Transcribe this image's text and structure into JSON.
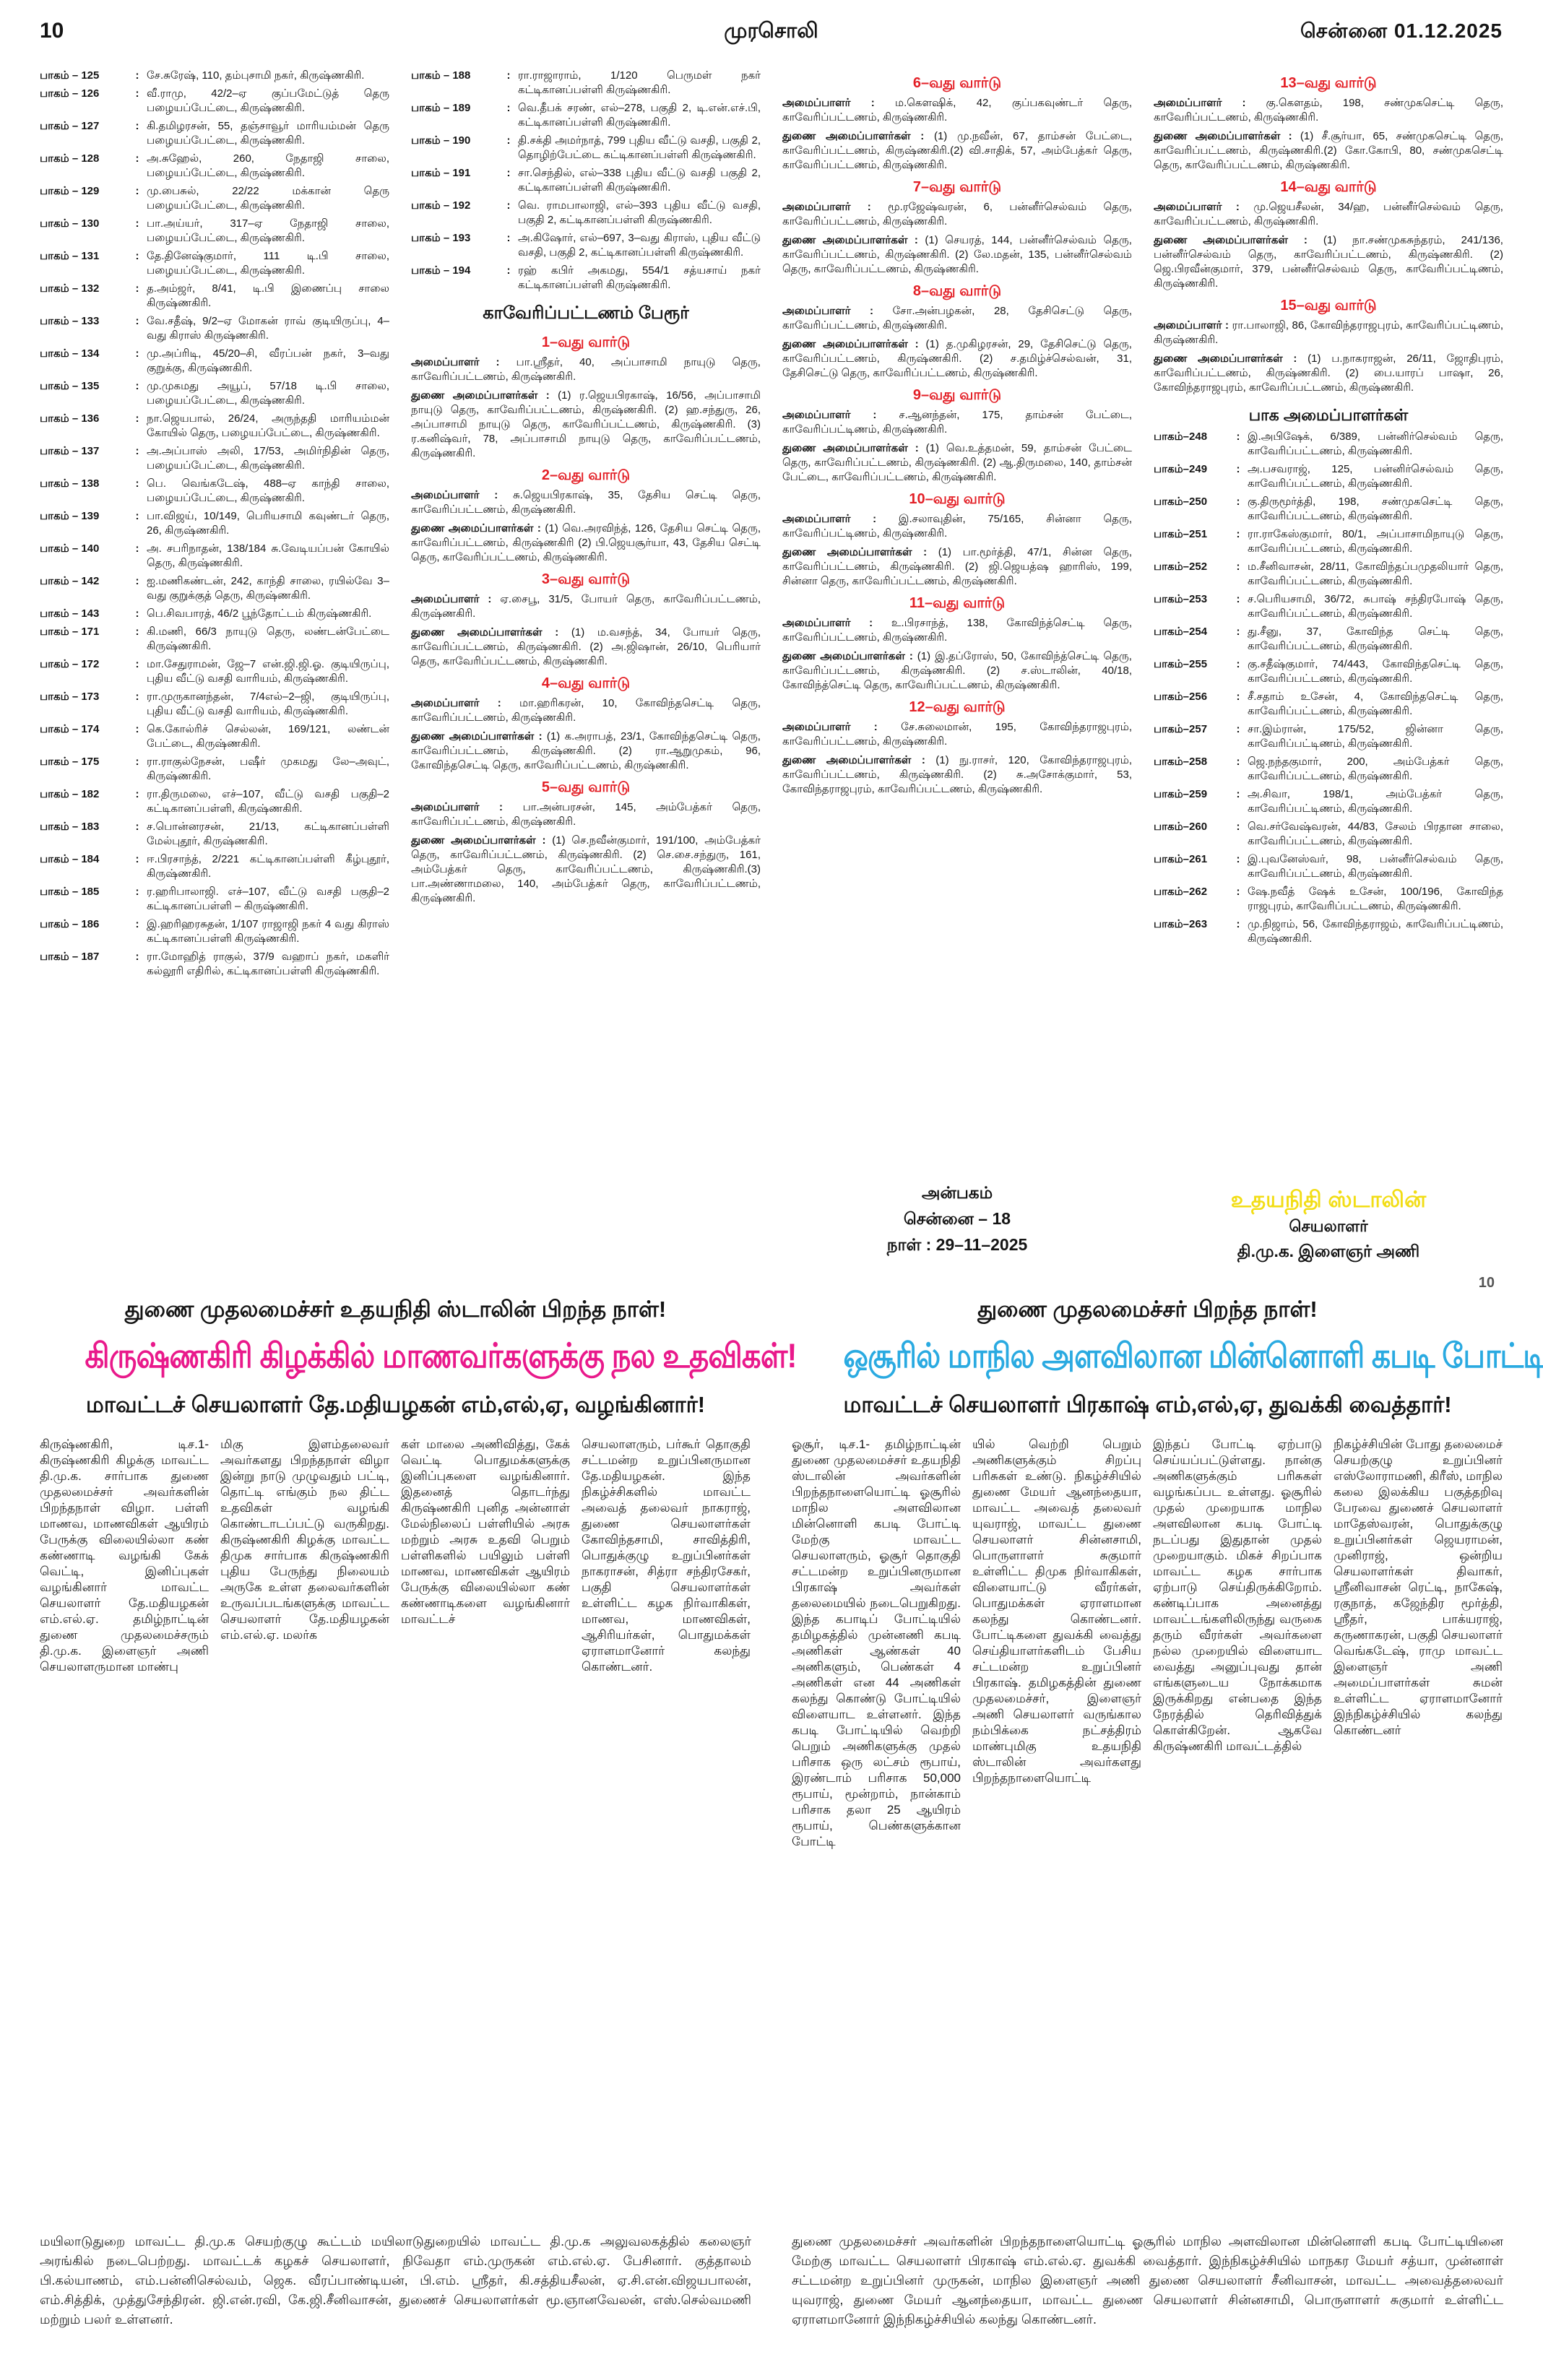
{
  "colors": {
    "ward_red": "#e31f26",
    "accent_pink": "#e9198b",
    "accent_blue": "#2aaae1",
    "accent_yellow": "#f2dd15"
  },
  "page": {
    "number": "10",
    "masthead": "முரசொலி",
    "city_date": "சென்னை  01.12.2025",
    "corner_number": "10"
  },
  "labels": {
    "organizer": "அமைப்பாளர்",
    "deputies": "துணை அமைப்பாளர்கள்",
    "sep": " : "
  },
  "listings": {
    "column1": {
      "entries": [
        {
          "num": "பாகம் – 125",
          "text": "சே.சுரேஷ், 110, தம்புசாமி நகர், கிருஷ்ணகிரி."
        },
        {
          "num": "பாகம் – 126",
          "text": "வீ.ராமு, 42/2–ஏ குப்பமேட்டுத் தெரு பழையப்பேட்டை, கிருஷ்ணகிரி."
        },
        {
          "num": "பாகம் – 127",
          "text": "கி.தமிழரசன், 55, தஞ்சாவூர் மாரியம்மன் தெரு பழையப்பேட்டை, கிருஷ்ணகிரி."
        },
        {
          "num": "பாகம் – 128",
          "text": "அ.சுஹேல், 260, நேதாஜி சாலை, பழையப்பேட்டை, கிருஷ்ணகிரி."
        },
        {
          "num": "பாகம் – 129",
          "text": "மு.பைசுல், 22/22 மக்கான் தெரு பழையப்பேட்டை, கிருஷ்ணகிரி."
        },
        {
          "num": "பாகம் – 130",
          "text": "பா.அய்யர், 317–ஏ நேதாஜி சாலை, பழையப்பேட்டை, கிருஷ்ணகிரி."
        },
        {
          "num": "பாகம் – 131",
          "text": "தே.தினேஷ்குமார், 111 டி.பி சாலை, பழையப்பேட்டை, கிருஷ்ணகிரி."
        },
        {
          "num": "பாகம் – 132",
          "text": "த.அம்ஜர், 8/41, டி.பி இணைப்பு சாலை கிருஷ்ணகிரி."
        },
        {
          "num": "பாகம் – 133",
          "text": "வே.சதீஷ், 9/2–ஏ மோகன் ராவ் குடியிருப்பு, 4–வது கிராஸ் கிருஷ்ணகிரி."
        },
        {
          "num": "பாகம் – 134",
          "text": "மு.அப்ரிடி, 45/20–சி, வீரப்பன் நகர், 3–வது குறுக்கு, கிருஷ்ணகிரி."
        },
        {
          "num": "பாகம் – 135",
          "text": "மு.முகமது அயூப், 57/18 டி.பி சாலை, பழையப்பேட்டை, கிருஷ்ணகிரி."
        },
        {
          "num": "பாகம் – 136",
          "text": "நா.ஜெயபால், 26/24, அருந்ததி மாரியம்மன் கோயில் தெரு, பழையப்பேட்டை, கிருஷ்ணகிரி."
        },
        {
          "num": "பாகம் – 137",
          "text": "அ.அப்பாஸ் அலி, 17/53, அமிர்நிதின் தெரு, பழையப்பேட்டை, கிருஷ்ணகிரி."
        },
        {
          "num": "பாகம் – 138",
          "text": "பெ. வெங்கடேஷ், 488–ஏ காந்தி சாலை, பழையப்பேட்டை, கிருஷ்ணகிரி."
        },
        {
          "num": "பாகம் – 139",
          "text": "பா.விஜய், 10/149, பெரியசாமி கவுண்டர் தெரு, 26, கிருஷ்ணகிரி."
        },
        {
          "num": "பாகம் – 140",
          "text": "அ. சபரிநாதன், 138/184 சு.வேடியப்பன் கோயில் தெரு, கிருஷ்ணகிரி."
        },
        {
          "num": "பாகம் – 142",
          "text": "ஐ.மணிகண்டன், 242, காந்தி சாலை, ரயில்வே 3–வது குறுக்குத் தெரு, கிருஷ்ணகிரி."
        },
        {
          "num": "பாகம் – 143",
          "text": "பெ.சிவபாரத், 46/2 பூந்தோட்டம் கிருஷ்ணகிரி."
        },
        {
          "num": "பாகம் – 171",
          "text": "கி.மணி, 66/3 நாயுடு தெரு, லண்டன்பேட்டை கிருஷ்ணகிரி."
        },
        {
          "num": "பாகம் – 172",
          "text": "மா.சேதுராமன், ஜே–7 என்.ஜி.ஜி.ஓ. குடியிருப்பு, புதிய வீட்டு வசதி வாரியம், கிருஷ்ணகிரி."
        },
        {
          "num": "பாகம் – 173",
          "text": "ரா.முருகானந்தன், 7/4எல்–2–ஜி, குடியிருப்பு, புதிய வீட்டு வசதி வாரியம், கிருஷ்ணகிரி."
        },
        {
          "num": "பாகம் – 174",
          "text": "கெ.கோல்ரிச் செல்லன், 169/121, லண்டன் பேட்டை, கிருஷ்ணகிரி."
        },
        {
          "num": "பாகம் – 175",
          "text": "ரா.ராகுல்நேசன், பஷீர் முகமது லே–அவுட், கிருஷ்ணகிரி."
        },
        {
          "num": "பாகம் – 182",
          "text": "ரா.திருமலை, எச்–107, வீட்டு வசதி பகுதி–2 கட்டிகானப்பள்ளி, கிருஷ்ணகிரி."
        },
        {
          "num": "பாகம் – 183",
          "text": "ச.பொன்னரசன், 21/13, கட்டிகானப்பள்ளி மேல்புதூர், கிருஷ்ணகிரி."
        },
        {
          "num": "பாகம் – 184",
          "text": "ஈ.பிரசாந்த், 2/221 கட்டிகானப்பள்ளி கீழ்புதூர், கிருஷ்ணகிரி."
        },
        {
          "num": "பாகம் – 185",
          "text": "ர.ஹரிபாலாஜி. எச்–107, வீட்டு வசதி பகுதி–2 கட்டிகானப்பள்ளி – கிருஷ்ணகிரி."
        },
        {
          "num": "பாகம் – 186",
          "text": "இ.ஹரிஹரசுதன், 1/107 ராஜாஜி நகர் 4 வது கிராஸ் கட்டிகானப்பள்ளி கிருஷ்ணகிரி."
        },
        {
          "num": "பாகம் – 187",
          "text": "ரா.மோஹித் ராகுல், 37/9 வஹாப் நகர், மகளிர் கல்லூரி எதிரில், கட்டிகானப்பள்ளி கிருஷ்ணகிரி."
        }
      ]
    },
    "column2": {
      "entries": [
        {
          "num": "பாகம் – 188",
          "text": "ரா.ராஜாராம், 1/120 பெருமள் நகர் கட்டிகானப்பள்ளி கிருஷ்ணகிரி."
        },
        {
          "num": "பாகம் – 189",
          "text": "வெ.தீபக் சரண், எல்–278, பகுதி 2, டி.என்.எச்.பி, கட்டிகானப்பள்ளி கிருஷ்ணகிரி."
        },
        {
          "num": "பாகம் – 190",
          "text": "தி.சக்தி அமர்நாத், 799 புதிய வீட்டு வசதி, பகுதி 2, தொழிற்பேட்டை கட்டிகானப்பள்ளி கிருஷ்ணகிரி."
        },
        {
          "num": "பாகம் – 191",
          "text": "சா.செந்தில், எல்–338 புதிய வீட்டு வசதி பகுதி 2, கட்டிகானப்பள்ளி கிருஷ்ணகிரி."
        },
        {
          "num": "பாகம் – 192",
          "text": "வெ. ராமபாலாஜி, எல்–393 புதிய வீட்டு வசதி, பகுதி 2, கட்டிகானப்பள்ளி கிருஷ்ணகிரி."
        },
        {
          "num": "பாகம் – 193",
          "text": "அ.கிஷோர், எல்–697, 3–வது கிராஸ், புதிய வீட்டு வசதி, பகுதி 2, கட்டிகானப்பள்ளி கிருஷ்ணகிரி."
        },
        {
          "num": "பாகம் – 194",
          "text": "ரஹ் கபிர் அகமது, 554/1 சத்யசாய் நகர் கட்டிகானப்பள்ளி கிருஷ்ணகிரி."
        }
      ],
      "section_title": "காவேரிப்பட்டணம் பேரூர்",
      "wards": [
        {
          "title": "1–வது வார்டு",
          "organizer": "பா.ஸ்ரீதர், 40, அப்பாசாமி நாயுடு தெரு, காவேரிப்பட்டணம், கிருஷ்ணகிரி.",
          "deputies": "(1) ர.ஜெயபிரகாஷ், 16/56, அப்பாசாமி நாயுடு தெரு, காவேரிப்பட்டணம், கிருஷ்ணகிரி. (2) ஹ.சந்துரு, 26, அப்பாசாமி நாயுடு தெரு, காவேரிப்பட்டணம், கிருஷ்ணகிரி. (3) ர.கனிஷ்வர், 78, அப்பாசாமி நாயுடு தெரு, காவேரிப்பட்டணம், கிருஷ்ணகிரி."
        },
        {
          "title": "2–வது வார்டு",
          "organizer": "சு.ஜெயபிரகாஷ், 35, தேசிய செட்டி தெரு, காவேரிப்பட்டணம், கிருஷ்ணகிரி.",
          "deputies": "(1) வெ.அரவிந்த், 126, தேசிய செட்டி தெரு, காவேரிப்பட்டணம், கிருஷ்ணகிரி (2) பி.ஜெயசூர்யா, 43, தேசிய செட்டி தெரு, காவேரிப்பட்டணம், கிருஷ்ணகிரி."
        },
        {
          "title": "3–வது வார்டு",
          "organizer": "ஏ.சைபூ, 31/5, போயர் தெரு, காவேரிப்பட்டணம், கிருஷ்ணகிரி.",
          "deputies": "(1) ம.வசந்த், 34, போயர் தெரு, காவேரிப்பட்டணம், கிருஷ்ணகிரி. (2) அ.ஜிஷான், 26/10, பெரியார் தெரு, காவேரிப்பட்டணம், கிருஷ்ணகிரி."
        },
        {
          "title": "4–வது வார்டு",
          "organizer": "மா.ஹரிகரன், 10, கோவிந்தசெட்டி தெரு, காவேரிப்பட்டணம், கிருஷ்ணகிரி.",
          "deputies": "(1) க.அராபத், 23/1, கோவிந்தசெட்டி தெரு, காவேரிப்பட்டணம், கிருஷ்ணகிரி. (2) ரா.ஆறுமுகம், 96, கோவிந்தசெட்டி தெரு, காவேரிப்பட்டணம், கிருஷ்ணகிரி."
        },
        {
          "title": "5–வது வார்டு",
          "organizer": "பா.அன்பரசன், 145, அம்பேத்கர் தெரு, காவேரிப்பட்டணம், கிருஷ்ணகிரி.",
          "deputies": "(1) செ.நவீன்குமார், 191/100, அம்பேத்கர் தெரு, காவேரிப்பட்டணம், கிருஷ்ணகிரி. (2) செ.சை.சந்துரு, 161, அம்பேத்கர் தெரு, காவேரிப்பட்டணம், கிருஷ்ணகிரி.(3) பா.அண்ணாமலை, 140, அம்பேத்கர் தெரு, காவேரிப்பட்டணம், கிருஷ்ணகிரி."
        }
      ]
    },
    "column3": {
      "wards": [
        {
          "title": "6–வது வார்டு",
          "organizer": "ம.கௌஷிக், 42, குப்பகவுண்டர் தெரு, காவேரிப்பட்டணம், கிருஷ்ணகிரி.",
          "deputies": "(1) மு.நவீன், 67, தாம்சன் பேட்டை, காவேரிப்பட்டணம், கிருஷ்ணகிரி.(2) வி.சாதிக், 57, அம்பேத்கர் தெரு, காவேரிப்பட்டணம், கிருஷ்ணகிரி."
        },
        {
          "title": "7–வது வார்டு",
          "organizer": "மூ.ரஜேஷ்வரன், 6, பன்னீர்செல்வம் தெரு, காவேரிப்பட்டணம், கிருஷ்ணகிரி.",
          "deputies": "(1) செயரத், 144, பன்னீர்செல்வம் தெரு, காவேரிப்பட்டணம், கிருஷ்ணகிரி. (2) லே.மதன், 135, பன்னீர்செல்வம் தெரு, காவேரிப்பட்டணம், கிருஷ்ணகிரி."
        },
        {
          "title": "8–வது வார்டு",
          "organizer": "சோ.அன்பழகன், 28, தேசிசெட்டு தெரு, காவேரிப்பட்டணம், கிருஷ்ணகிரி.",
          "deputies": "(1) த.முகிழரசன், 29, தேசிசெட்டு தெரு, காவேரிப்பட்டணம், கிருஷ்ணகிரி. (2) ச.தமிழ்ச்செல்வன், 31, தேசிசெட்டு தெரு, காவேரிப்பட்டணம், கிருஷ்ணகிரி."
        },
        {
          "title": "9–வது வார்டு",
          "organizer": "ச.ஆனந்தன், 175, தாம்சன் பேட்டை, காவேரிப்பட்டிணம், கிருஷ்ணகிரி.",
          "deputies": "(1) வெ.உத்தமன், 59, தாம்சன் பேட்டை தெரு, காவேரிப்பட்டணம், கிருஷ்ணகிரி. (2) ஆ.திருமலை, 140, தாம்சன் பேட்டை, காவேரிப்பட்டணம், கிருஷ்ணகிரி."
        },
        {
          "title": "10–வது வார்டு",
          "organizer": "இ.சலாவுதின், 75/165, சின்னா தெரு, காவேரிப்பட்டிணம், கிருஷ்ணகிரி.",
          "deputies": "(1) பா.மூர்த்தி, 47/1, சின்ன தெரு, காவேரிப்பட்டணம், கிருஷ்ணகிரி. (2) ஜி.ஜெயத்ஷ ஹாரிஸ், 199, சின்னா தெரு, காவேரிப்பட்டணம், கிருஷ்ணகிரி."
        },
        {
          "title": "11–வது வார்டு",
          "organizer": "உ.பிரசாந்த், 138, கோவிந்த்செட்டி தெரு, காவேரிப்பட்டணம், கிருஷ்ணகிரி.",
          "deputies": "(1) இ.தப்ரோஸ், 50, கோவிந்த்செட்டி தெரு, காவேரிப்பட்டணம், கிருஷ்ணகிரி. (2) ச.ஸ்டாலின், 40/18, கோவிந்த்செட்டி தெரு, காவேரிப்பட்டணம், கிருஷ்ணகிரி."
        },
        {
          "title": "12–வது வார்டு",
          "organizer": "சே.சுலைமான், 195, கோவிந்தராஜபுரம், காவேரிப்பட்டணம், கிருஷ்ணகிரி.",
          "deputies": "(1) நு.ராசர், 120, கோவிந்தராஜபுரம், காவேரிப்பட்டணம், கிருஷ்ணகிரி. (2) சு.அசோக்குமார், 53, கோவிந்தராஜபுரம், காவேரிப்பட்டணம், கிருஷ்ணகிரி."
        }
      ],
      "imprint": {
        "line1": "அன்பகம்",
        "line2": "சென்னை – 18",
        "line3": "நாள் : 29–11–2025"
      }
    },
    "column4": {
      "wards": [
        {
          "title": "13–வது வார்டு",
          "organizer": "கு.கௌதம், 198, சண்முகசெட்டி தெரு, காவேரிப்பட்டணம், கிருஷ்ணகிரி.",
          "deputies": "(1) சீ.சூர்யா, 65, சண்முகசெட்டி தெரு, காவேரிப்பட்டணம், கிருஷ்ணகிரி.(2) கோ.கோபி, 80, சண்முகசெட்டி தெரு, காவேரிப்பட்டணம், கிருஷ்ணகிரி."
        },
        {
          "title": "14–வது வார்டு",
          "organizer": "மு.ஜெயசீலன், 34/ஹ, பன்னீர்செல்வம் தெரு, காவேரிப்பட்டணம், கிருஷ்ணகிரி.",
          "deputies": "(1) நா.சண்முகசுந்தரம், 241/136, பன்னீர்செல்வம் தெரு, காவேரிப்பட்டணம், கிருஷ்ணகிரி. (2) ஜெ.பிரவீன்குமார், 379, பன்னீர்செல்வம் தெரு, காவேரிப்பட்டிணம், கிருஷ்ணகிரி."
        },
        {
          "title": "15–வது வார்டு",
          "organizer": "ரா.பாலாஜி, 86, கோவிந்தராஜபுரம், காவேரிப்பட்டிணம், கிருஷ்ணகிரி.",
          "deputies": "(1) ப.நாகராஜன், 26/11, ஜோதிபுரம், காவேரிப்பட்டணம், கிருஷ்ணகிரி. (2) பை.யாரப் பாஷா, 26, கோவிந்தராஜபுரம், காவேரிப்பட்டணம், கிருஷ்ணகிரி."
        }
      ],
      "part_title": "பாக அமைப்பாளர்கள்",
      "entries": [
        {
          "num": "பாகம்–248",
          "text": "இ.அபிஷேக், 6/389, பன்னிர்செல்வம் தெரு, காவேரிப்பட்டணம், கிருஷ்ணகிரி."
        },
        {
          "num": "பாகம்–249",
          "text": "அ.பசவராஜ், 125, பன்னிர்செல்வம் தெரு, காவேரிப்பட்டணம், கிருஷ்ணகிரி."
        },
        {
          "num": "பாகம்–250",
          "text": "கு.திருமூர்த்தி, 198, சண்முகசெட்டி தெரு, காவேரிப்பட்டணம், கிருஷ்ணகிரி."
        },
        {
          "num": "பாகம்–251",
          "text": "ரா.ராகேஸ்குமார், 80/1, அப்பாசாமிநாயுடு தெரு, காவேரிப்பட்டணம், கிருஷ்ணகிரி."
        },
        {
          "num": "பாகம்–252",
          "text": "ம.சீனிவாசன், 28/11, கோவிந்தப்பமுதலியார் தெரு, காவேரிப்பட்டணம், கிருஷ்ணகிரி."
        },
        {
          "num": "பாகம்–253",
          "text": "ச.பெரியசாமி, 36/72, சுபாஷ் சந்திரபோஷ் தெரு, காவேரிப்பட்டணம், கிருஷ்ணகிரி."
        },
        {
          "num": "பாகம்–254",
          "text": "து.சீனு, 37, கோவிந்த செட்டி தெரு, காவேரிப்பட்டணம், கிருஷ்ணகிரி."
        },
        {
          "num": "பாகம்–255",
          "text": "கு.சதீஷ்குமார், 74/443, கோவிந்தசெட்டி தெரு, காவேரிப்பட்டணம், கிருஷ்ணகிரி."
        },
        {
          "num": "பாகம்–256",
          "text": "சீ.சதாம் உசேன், 4, கோவிந்தசெட்டி தெரு, காவேரிப்பட்டணம், கிருஷ்ணகிரி."
        },
        {
          "num": "பாகம்–257",
          "text": "சா.இம்ரான், 175/52, ஜின்னா தெரு, காவேரிப்பட்டிணம், கிருஷ்ணகிரி."
        },
        {
          "num": "பாகம்–258",
          "text": "ஜெ.நந்தகுமார், 200, அம்பேத்கர் தெரு, காவேரிப்பட்டணம், கிருஷ்ணகிரி."
        },
        {
          "num": "பாகம்–259",
          "text": "அ.சிவா, 198/1, அம்பேத்கர் தெரு, காவேரிப்பட்டிணம், கிருஷ்ணகிரி."
        },
        {
          "num": "பாகம்–260",
          "text": "வெ.சர்வேஷ்வரன், 44/83, சேலம் பிரதான சாலை, காவேரிப்பட்டணம், கிருஷ்ணகிரி."
        },
        {
          "num": "பாகம்–261",
          "text": "இ.புவனேஸ்வர், 98, பன்னீர்செல்வம் தெரு, காவேரிப்பட்டணம், கிருஷ்ணகிரி."
        },
        {
          "num": "பாகம்–262",
          "text": "ஷே.நவீத் ஷேக் உசேன், 100/196, கோவிந்த ராஜபுரம், காவேரிப்பட்டணம், கிருஷ்ணகிரி."
        },
        {
          "num": "பாகம்–263",
          "text": "மு.நிஜாம், 56, கோவிந்தராஜம், காவேரிப்பட்டிணம், கிருஷ்ணகிரி."
        }
      ],
      "signature": {
        "name": "உதயநிதி ஸ்டாலின்",
        "role": "செயலாளர்",
        "org": "தி.மு.க. இளைஞர் அணி"
      }
    }
  },
  "articles": {
    "left": {
      "kicker": "துணை முதலமைச்சர் உதயநிதி ஸ்டாலின் பிறந்த நாள்!",
      "headline": "கிருஷ்ணகிரி கிழக்கில் மாணவர்களுக்கு நல உதவிகள்!",
      "subhead": "மாவட்டச் செயலாளர் தே.மதியழகன் எம்,எல்,ஏ, வழங்கினார்!",
      "body_columns": [
        "கிருஷ்ணகிரி, டிச.1- கிருஷ்ணகிரி கிழக்கு மாவட்ட தி.மு.க. சார்பாக துணை முதலமைச்சர் அவர்களின் பிறந்தநாள் விழா. பள்ளி மாணவ, மாணவிகள் ஆயிரம் பேருக்கு விலையில்லா கண் கண்ணாடி வழங்கி கேக் வெட்டி, இனிப்புகள் வழங்கினார் மாவட்ட செயலாளர் தே.மதியழகன் எம்.எல்.ஏ. தமிழ்நாட்டின் துணை முதலமைச்சரும் தி.மு.க. இளைஞர் அணி செயலாளருமான மாண்பு",
        "மிகு இளம்தலைவர் அவர்களது பிறந்தநாள் விழா இன்று நாடு முழுவதும் பட்டி, தொட்டி எங்கும் நல திட்ட உதவிகள் வழங்கி கொண்டாடப்பட்டு வருகிறது. கிருஷ்ணகிரி கிழக்கு மாவட்ட திமுக சார்பாக கிருஷ்ணகிரி புதிய பேருந்து நிலையம் அருகே உள்ள தலைவர்களின் உருவப்படங்களுக்கு மாவட்ட செயலாளர் தே.மதியழகன் எம்.எல்.ஏ. மலர்க",
        "கள் மாலை அணிவித்து, கேக் வெட்டி பொதுமக்களுக்கு இனிப்புகளை வழங்கினார். இதனைத் தொடர்ந்து கிருஷ்ணகிரி புனித அன்னாள் மேல்நிலைப் பள்ளியில் அரசு மற்றும் அரசு உதவி பெறும் பள்ளிகளில் பயிலும் பள்ளி மாணவ, மாணவிகள் ஆயிரம் பேருக்கு விலையில்லா கண் கண்ணாடிகளை வழங்கினார் மாவட்டச்",
        "செயலாளரும், பர்கூர் தொகுதி சட்டமன்ற உறுப்பினருமான தே.மதியழகன். இந்த நிகழ்ச்சிகளில் மாவட்ட அவைத் தலைவர் நாகராஜ், துணை செயலாளர்கள் கோவிந்தசாமி, சாவித்திரி, பொதுக்குழு உறுப்பினர்கள் நாகராசன், சித்ரா சந்திரசேகர், பகுதி செயலாளர்கள் உள்ளிட்ட கழக நிர்வாகிகள், மாணவ, மாணவிகள், ஆசிரியர்கள், பொதுமக்கள் ஏராளமானோர் கலந்து கொண்டனர்."
      ]
    },
    "right": {
      "kicker": "துணை முதலமைச்சர் பிறந்த நாள்!",
      "headline": "ஒசூரில் மாநில அளவிலான மின்னொளி கபடி போட்டி!",
      "subhead": "மாவட்டச் செயலாளர் பிரகாஷ் எம்,எல்,ஏ, துவக்கி வைத்தார்!",
      "body_columns": [
        "ஓசூர், டிச.1- தமிழ்நாட்டின் துணை முதலமைச்சர் உதயநிதி ஸ்டாலின் அவர்களின் பிறந்தநாளையொட்டி ஓசூரில் மாநில அளவிலான மின்னொளி கபடி போட்டி மேற்கு மாவட்ட செயலாளரும், ஓசூர் தொகுதி சட்டமன்ற உறுப்பினருமான பிரகாஷ் அவர்கள் தலைமையில் நடைபெறுகிறது. இந்த கபாடிப் போட்டியில் தமிழகத்தில் முன்னணி கபடி அணிகள் ஆண்கள் 40 அணிகளும், பெண்கள் 4 அணிகள் என 44 அணிகள் கலந்து கொண்டு போட்டியில் விளையாட உள்ளனர். இந்த கபடி போட்டியில் வெற்றி பெறும் அணிகளுக்கு முதல் பரிசாக ஒரு லட்சம் ரூபாய், இரண்டாம் பரிசாக 50,000 ரூபாய், மூன்றாம், நான்காம் பரிசாக தலா 25 ஆயிரம் ரூபாய், பெண்களுக்கான போட்டி",
        "யில் வெற்றி பெறும் அணிகளுக்கும் சிறப்பு பரிசுகள் உண்டு. நிகழ்ச்சியில் துணை மேயர் ஆனந்தையா, மாவட்ட அவைத் தலைவர் யுவராஜ், மாவட்ட துணை செயலாளர் சின்னசாமி, பொருளாளர் சுகுமார் உள்ளிட்ட திமுக நிர்வாகிகள், விளையாட்டு வீரர்கள், பொதுமக்கள் ஏராளமான கலந்து கொண்டனர். போட்டிகளை துவக்கி வைத்து செய்தியாளர்களிடம் பேசிய சட்டமன்ற உறுப்பினர் பிரகாஷ். தமிழகத்தின் துணை முதலமைச்சர், இளைஞர் அணி செயலாளர் வருங்கால நம்பிக்கை நட்சத்திரம் மாண்புமிகு உதயநிதி ஸ்டாலின் அவர்களது பிறந்தநாளையொட்டி",
        "இந்தப் போட்டி ஏற்பாடு செய்யப்பட்டுள்ளது. நான்கு அணிகளுக்கும் பரிசுகள் வழங்கப்பட உள்ளது. ஓசூரில் முதல் முறையாக மாநில அளவிலான கபடி போட்டி நடப்பது இதுதான் முதல் முறையாகும். மிகச் சிறப்பாக மாவட்ட கழக சார்பாக ஏற்பாடு செய்திருக்கிறோம். கண்டிப்பாக அனைத்து மாவட்டங்களிலிருந்து வருகை தரும் வீரர்கள் அவர்களை நல்ல முறையில் விளையாட வைத்து அனுப்புவது தான் எங்களுடைய நோக்கமாக இருக்கிறது என்பதை இந்த நேரத்தில் தெரிவித்துக் கொள்கிறேன். ஆகவே கிருஷ்ணகிரி மாவட்டத்தில்",
        "நிகழ்ச்சியின் போது தலைமைச் செயற்குழு உறுப்பினர் எஸ்லோராமணி, கிரீஸ், மாநில கலை இலக்கிய பகுத்தறிவு பேரவை துணைச் செயலாளர் மாதேஸ்வரன், பொதுக்குழு உறுப்பினர்கள் ஜெயராமன், முனிராஜ், ஒன்றிய செயலாளர்கள் திவாகர், ஸ்ரீனிவாசன் ரெட்டி, நாகேஷ், ரகுநாத், கஜேந்திர மூர்த்தி, ஸ்ரீதர், பாக்யராஜ், கருணாகரன், பகுதி செயலாளர் வெங்கடேஷ், ராமு மாவட்ட இளைஞர் அணி அமைப்பாளர்கள் சுமன் உள்ளிட்ட ஏராளமானோர் இந்நிகழ்ச்சியில் கலந்து கொண்டனர்"
      ]
    }
  },
  "captions": {
    "left": "மயிலாடுதுறை மாவட்ட தி.மு.க செயற்குழு கூட்டம் மயிலாடுதுறையில் மாவட்ட தி.மு.க அலுவலகத்தில் கலைஞர் அரங்கில் நடைபெற்றது. மாவட்டக் கழகச் செயலாளர், நிவேதா எம்.முருகன் எம்.எல்.ஏ. பேசினார். குத்தாலம் பி.கல்யாணம், எம்.பன்னிசெல்வம், ஜெக. வீரப்பாண்டியன், பி.எம். ஸ்ரீதர், கி.சத்தியசீலன், ஏ.சி.என்.விஜயபாலன், எம்.சித்திக், முத்துசேந்திரன். ஜி.என்.ரவி, கே.ஜி.சீனிவாசன், துணைச் செயலாளர்கள் மூ.ஞானவேலன், எஸ்.செல்வமணி மற்றும் பலர் உள்ளனர்.",
    "right": "துணை முதலமைச்சர் அவர்களின் பிறந்தநாளையொட்டி ஓசூரில் மாநில அளவிலான மின்னொளி கபடி போட்டியினை மேற்கு மாவட்ட செயலாளர் பிரகாஷ் எம்.எல்.ஏ. துவக்கி வைத்தார். இந்நிகழ்ச்சியில் மாநகர மேயர் சத்யா, முன்னாள் சட்டமன்ற உறுப்பினர் முருகன், மாநில இளைஞர் அணி துணை செயலாளர் சீனிவாசன், மாவட்ட அவைத்தலைவர் யுவராஜ், துணை மேயர் ஆனந்தையா, மாவட்ட துணை செயலாளர் சின்னசாமி, பொருளாளர் சுகுமார் உள்ளிட்ட ஏராளமானோர் இந்நிகழ்ச்சியில் கலந்து கொண்டனர்."
  }
}
